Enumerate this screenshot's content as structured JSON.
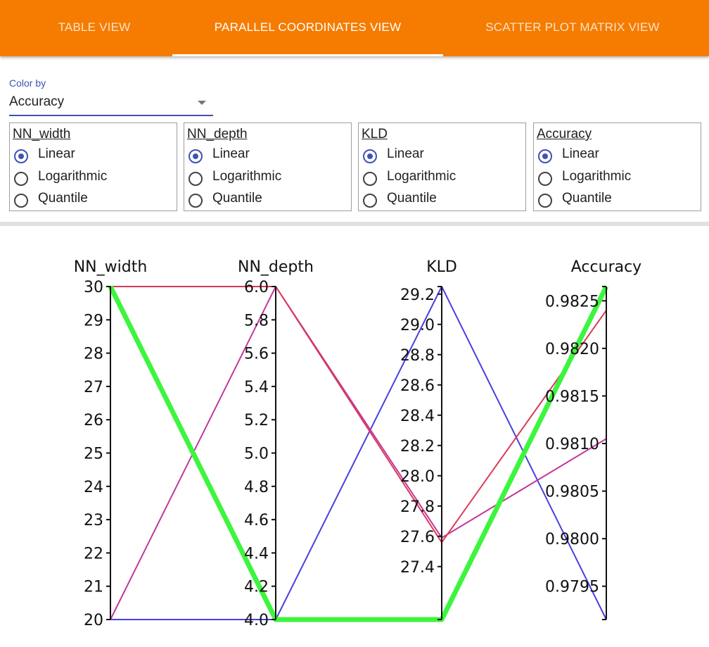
{
  "tabs": [
    {
      "label": "TABLE VIEW",
      "active": false
    },
    {
      "label": "PARALLEL COORDINATES VIEW",
      "active": true
    },
    {
      "label": "SCATTER PLOT MATRIX VIEW",
      "active": false
    }
  ],
  "color_by": {
    "label": "Color by",
    "value": "Accuracy"
  },
  "scale_groups": [
    {
      "name": "NN_width",
      "options": [
        "Linear",
        "Logarithmic",
        "Quantile"
      ],
      "selected": "Linear"
    },
    {
      "name": "NN_depth",
      "options": [
        "Linear",
        "Logarithmic",
        "Quantile"
      ],
      "selected": "Linear"
    },
    {
      "name": "KLD",
      "options": [
        "Linear",
        "Logarithmic",
        "Quantile"
      ],
      "selected": "Linear"
    },
    {
      "name": "Accuracy",
      "options": [
        "Linear",
        "Logarithmic",
        "Quantile"
      ],
      "selected": "Linear"
    }
  ],
  "chart_data": {
    "type": "parallel_coordinates",
    "axes": [
      {
        "name": "NN_width",
        "range": [
          20,
          30
        ],
        "ticks": [
          "20",
          "21",
          "22",
          "23",
          "24",
          "25",
          "26",
          "27",
          "28",
          "29",
          "30"
        ]
      },
      {
        "name": "NN_depth",
        "range": [
          4.0,
          6.0
        ],
        "ticks": [
          "4.0",
          "4.2",
          "4.4",
          "4.6",
          "4.8",
          "5.0",
          "5.2",
          "5.4",
          "5.6",
          "5.8",
          "6.0"
        ]
      },
      {
        "name": "KLD",
        "range": [
          27.05,
          29.25
        ],
        "ticks": [
          "27.4",
          "27.6",
          "27.8",
          "28.0",
          "28.2",
          "28.4",
          "28.6",
          "28.8",
          "29.0",
          "29.2"
        ]
      },
      {
        "name": "Accuracy",
        "range": [
          0.97915,
          0.98265
        ],
        "ticks": [
          "0.9795",
          "0.9800",
          "0.9805",
          "0.9810",
          "0.9815",
          "0.9820",
          "0.9825"
        ]
      }
    ],
    "lines": [
      {
        "values": [
          20,
          4.0,
          29.25,
          0.97915
        ],
        "color": "#4a3fe0",
        "width": 2
      },
      {
        "values": [
          20,
          6.0,
          27.59,
          0.98105
        ],
        "color": "#c2389a",
        "width": 2
      },
      {
        "values": [
          30,
          6.0,
          27.56,
          0.9824
        ],
        "color": "#d83a5a",
        "width": 2
      },
      {
        "values": [
          30,
          4.0,
          27.05,
          0.98265
        ],
        "color": "#3df53d",
        "width": 7
      }
    ]
  }
}
